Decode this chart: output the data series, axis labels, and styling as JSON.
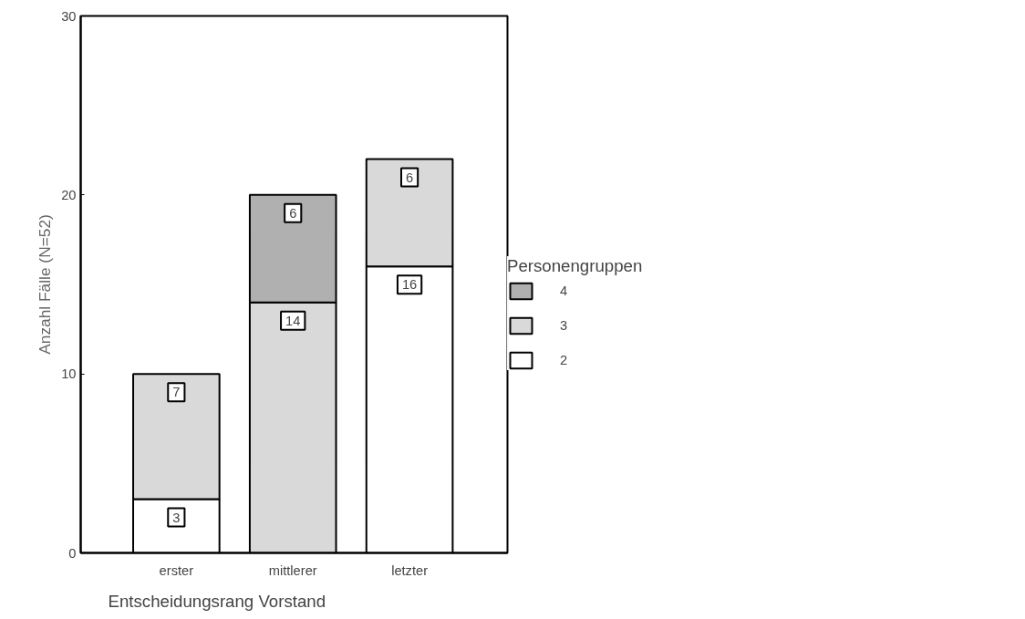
{
  "chart_data": {
    "type": "bar",
    "stacked": true,
    "categories": [
      "erster",
      "mittlerer",
      "letzter"
    ],
    "series": [
      {
        "name": "2",
        "color": "#ffffff",
        "values": [
          3,
          null,
          16
        ]
      },
      {
        "name": "3",
        "color": "#d9d9d9",
        "values": [
          7,
          14,
          6
        ]
      },
      {
        "name": "4",
        "color": "#b0b0b0",
        "values": [
          null,
          6,
          null
        ]
      }
    ],
    "ylim": [
      0,
      30
    ],
    "yticks": [
      0,
      10,
      20,
      30
    ],
    "ylabel": "Anzahl Fälle (N=52)",
    "xlabel": "Entscheidungsrang Vorstand",
    "legend_title": "Personengruppen",
    "legend": "right",
    "grid": false,
    "data_labels": true
  }
}
